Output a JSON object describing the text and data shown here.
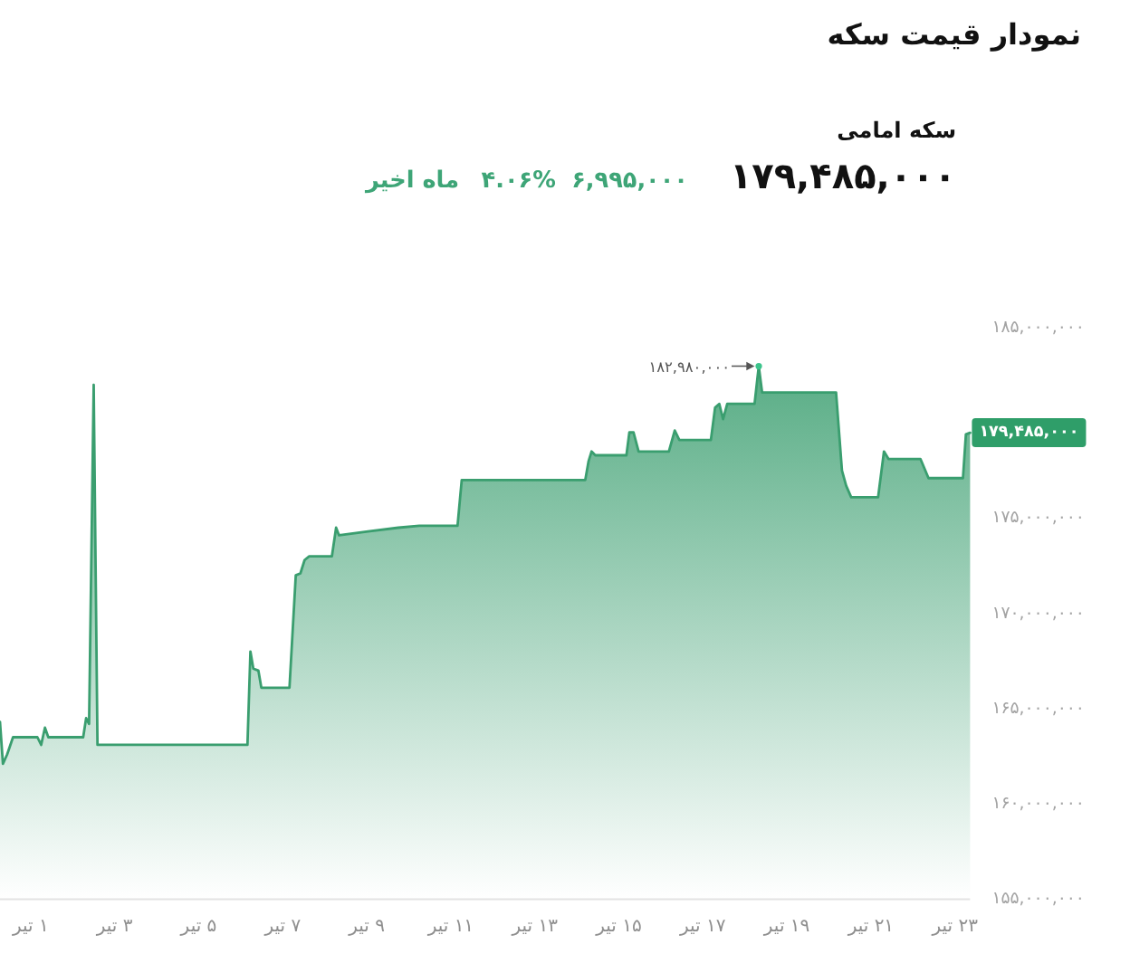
{
  "chart_data": {
    "type": "area",
    "title": "نمودار قیمت سکه",
    "subtitle": "سکه امامی",
    "annotations": [
      "۱۷۹,۴۸۵,۰۰۰",
      "۶,۹۹۵,۰۰۰",
      "۴.۰۶%",
      "ماه اخیر",
      {
        "text": "۱۸۲,۹۸۰,۰۰۰",
        "x": 18.33,
        "y": 182980000
      },
      {
        "text": "۱۷۹,۴۸۵,۰۰۰",
        "x": 23.36,
        "y": 179485000
      }
    ],
    "series": [
      {
        "color": "#3a9e6f",
        "x": [
          0.27,
          0.34,
          0.44,
          0.58,
          1.16,
          1.25,
          1.34,
          1.42,
          2.25,
          2.32,
          2.39,
          2.5,
          2.59,
          6.16,
          6.23,
          6.3,
          6.42,
          6.49,
          7.16,
          7.31,
          7.42,
          7.52,
          7.63,
          8.17,
          8.27,
          8.34,
          9.03,
          9.75,
          10.25,
          11.16,
          11.26,
          14.2,
          14.28,
          14.35,
          14.44,
          15.18,
          15.25,
          15.35,
          15.47,
          16.19,
          16.33,
          16.44,
          17.19,
          17.29,
          17.39,
          17.48,
          17.58,
          18.23,
          18.33,
          18.41,
          20.17,
          20.31,
          20.41,
          20.53,
          21.17,
          21.31,
          21.42,
          22.18,
          22.37,
          23.19,
          23.26,
          23.36
        ],
        "values": [
          164300000,
          162100000,
          162600000,
          163500000,
          163500000,
          163100000,
          164000000,
          163500000,
          163500000,
          164500000,
          164200000,
          182000000,
          163100000,
          163100000,
          168000000,
          167100000,
          167000000,
          166100000,
          166100000,
          172000000,
          172100000,
          172800000,
          173000000,
          173000000,
          174500000,
          174100000,
          174300000,
          174500000,
          174600000,
          174600000,
          177000000,
          177000000,
          178000000,
          178500000,
          178300000,
          178300000,
          179500000,
          179500000,
          178500000,
          178500000,
          179600000,
          179100000,
          179100000,
          180800000,
          181000000,
          180200000,
          181000000,
          181000000,
          182980000,
          181600000,
          181600000,
          177500000,
          176700000,
          176100000,
          176100000,
          178500000,
          178100000,
          178100000,
          177100000,
          177100000,
          179400000,
          179485000
        ]
      }
    ],
    "xlim": [
      0.27,
      23.36
    ],
    "ylim": [
      155000000,
      185000000
    ],
    "xticks": [
      {
        "value": 1,
        "label": "۱ تیر"
      },
      {
        "value": 3,
        "label": "۳ تیر"
      },
      {
        "value": 5,
        "label": "۵ تیر"
      },
      {
        "value": 7,
        "label": "۷ تیر"
      },
      {
        "value": 9,
        "label": "۹ تیر"
      },
      {
        "value": 11,
        "label": "۱۱ تیر"
      },
      {
        "value": 13,
        "label": "۱۳ تیر"
      },
      {
        "value": 15,
        "label": "۱۵ تیر"
      },
      {
        "value": 17,
        "label": "۱۷ تیر"
      },
      {
        "value": 19,
        "label": "۱۹ تیر"
      },
      {
        "value": 21,
        "label": "۲۱ تیر"
      },
      {
        "value": 23,
        "label": "۲۳ تیر"
      }
    ],
    "yticks": [
      {
        "value": 155000000,
        "label": "۱۵۵,۰۰۰,۰۰۰"
      },
      {
        "value": 160000000,
        "label": "۱۶۰,۰۰۰,۰۰۰"
      },
      {
        "value": 165000000,
        "label": "۱۶۵,۰۰۰,۰۰۰"
      },
      {
        "value": 170000000,
        "label": "۱۷۰,۰۰۰,۰۰۰"
      },
      {
        "value": 175000000,
        "label": "۱۷۵,۰۰۰,۰۰۰"
      },
      {
        "value": 185000000,
        "label": "۱۸۵,۰۰۰,۰۰۰"
      }
    ]
  }
}
